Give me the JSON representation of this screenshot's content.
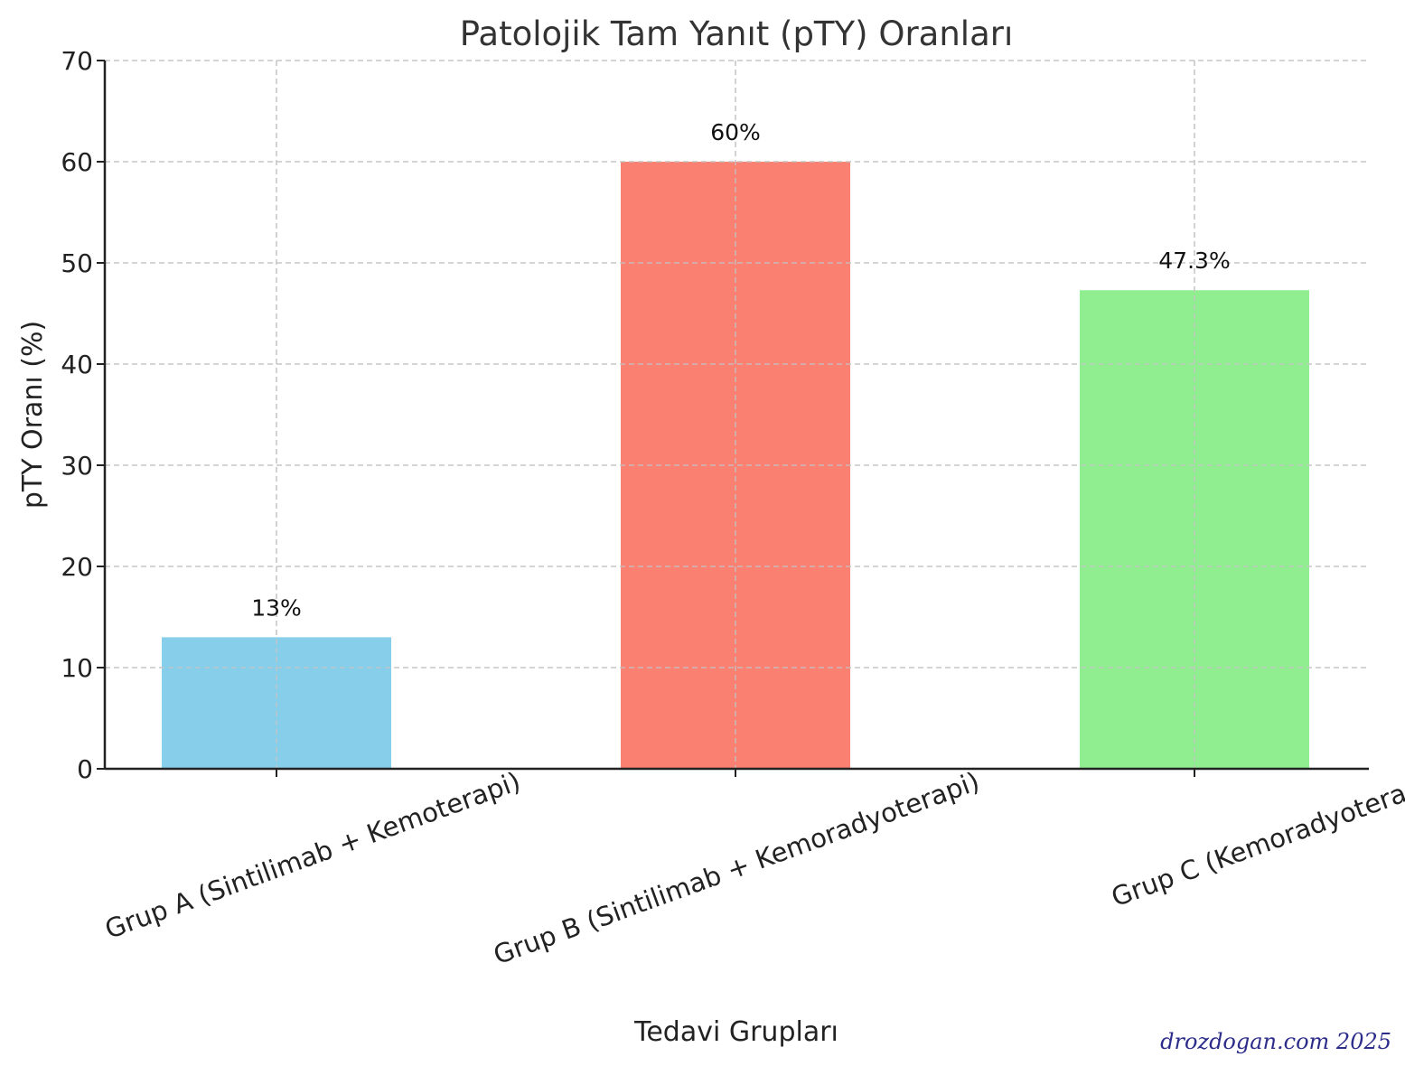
{
  "chart_data": {
    "type": "bar",
    "title": "Patolojik Tam Yanıt (pTY) Oranları",
    "xlabel": "Tedavi Grupları",
    "ylabel": "pTY Oranı (%)",
    "categories": [
      "Grup A (Sintilimab + Kemoterapi)",
      "Grup B (Sintilimab + Kemoradyoterapi)",
      "Grup C (Kemoradyoterapi)"
    ],
    "values": [
      13,
      60,
      47.3
    ],
    "value_labels": [
      "13%",
      "60%",
      "47.3%"
    ],
    "colors": [
      "#87ceeb",
      "#fa8072",
      "#90ee90"
    ],
    "ylim": [
      0,
      70
    ],
    "yticks": [
      0,
      10,
      20,
      30,
      40,
      50,
      60,
      70
    ],
    "grid": true
  },
  "watermark": "drozdogan.com  2025"
}
